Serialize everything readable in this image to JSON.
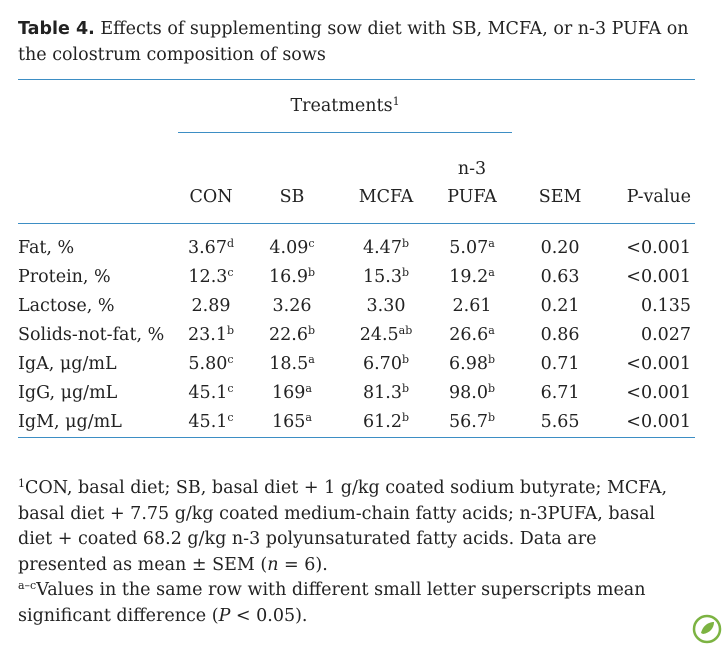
{
  "caption": {
    "label": "Table 4.",
    "text": "Effects of supplementing sow diet with SB, MCFA, or n-3 PUFA on the colostrum composition of sows"
  },
  "table": {
    "group_header": {
      "text": "Treatments",
      "note": "1"
    },
    "columns": [
      "CON",
      "SB",
      "MCFA",
      "n-3 PUFA",
      "SEM",
      "P-value"
    ],
    "rows": [
      {
        "label": "Fat, %",
        "cells": [
          {
            "value": "3.67",
            "sup": "d"
          },
          {
            "value": "4.09",
            "sup": "c"
          },
          {
            "value": "4.47",
            "sup": "b"
          },
          {
            "value": "5.07",
            "sup": "a"
          },
          {
            "value": "0.20"
          },
          {
            "value": "<0.001"
          }
        ]
      },
      {
        "label": "Protein, %",
        "cells": [
          {
            "value": "12.3",
            "sup": "c"
          },
          {
            "value": "16.9",
            "sup": "b"
          },
          {
            "value": "15.3",
            "sup": "b"
          },
          {
            "value": "19.2",
            "sup": "a"
          },
          {
            "value": "0.63"
          },
          {
            "value": "<0.001"
          }
        ]
      },
      {
        "label": "Lactose, %",
        "cells": [
          {
            "value": "2.89"
          },
          {
            "value": "3.26"
          },
          {
            "value": "3.30"
          },
          {
            "value": "2.61"
          },
          {
            "value": "0.21"
          },
          {
            "value": "0.135"
          }
        ]
      },
      {
        "label": "Solids-not-fat, %",
        "cells": [
          {
            "value": "23.1",
            "sup": "b"
          },
          {
            "value": "22.6",
            "sup": "b"
          },
          {
            "value": "24.5",
            "sup": "ab"
          },
          {
            "value": "26.6",
            "sup": "a"
          },
          {
            "value": "0.86"
          },
          {
            "value": "0.027"
          }
        ]
      },
      {
        "label": "IgA, μg/mL",
        "cells": [
          {
            "value": "5.80",
            "sup": "c"
          },
          {
            "value": "18.5",
            "sup": "a"
          },
          {
            "value": "6.70",
            "sup": "b"
          },
          {
            "value": "6.98",
            "sup": "b"
          },
          {
            "value": "0.71"
          },
          {
            "value": "<0.001"
          }
        ]
      },
      {
        "label": "IgG, μg/mL",
        "cells": [
          {
            "value": "45.1",
            "sup": "c"
          },
          {
            "value": "169",
            "sup": "a"
          },
          {
            "value": "81.3",
            "sup": "b"
          },
          {
            "value": "98.0",
            "sup": "b"
          },
          {
            "value": "6.71"
          },
          {
            "value": "<0.001"
          }
        ]
      },
      {
        "label": "IgM, μg/mL",
        "cells": [
          {
            "value": "45.1",
            "sup": "c"
          },
          {
            "value": "165",
            "sup": "a"
          },
          {
            "value": "61.2",
            "sup": "b"
          },
          {
            "value": "56.7",
            "sup": "b"
          },
          {
            "value": "5.65"
          },
          {
            "value": "<0.001"
          }
        ]
      }
    ]
  },
  "footnotes": [
    {
      "marker": "1",
      "parts": [
        "CON, basal diet; SB, basal diet + 1 g/kg coated sodium butyrate; MCFA, basal diet + 7.75 g/kg coated medium-chain fatty acids; n-3PUFA, basal diet + coated 68.2 g/kg n-3 polyunsaturated fatty acids. Data are presented as mean ± SEM (",
        "n",
        " = 6)."
      ]
    },
    {
      "marker": "a–c",
      "parts": [
        "Values in the same row with different small letter superscripts mean significant difference (",
        "P",
        " < 0.05)."
      ]
    }
  ]
}
